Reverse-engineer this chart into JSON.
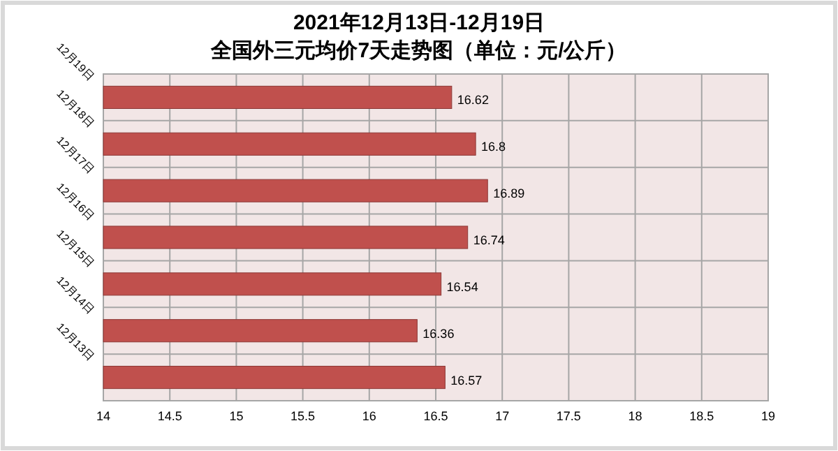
{
  "chart_data": {
    "type": "bar",
    "orientation": "horizontal",
    "title": "2021年12月13日-12月19日",
    "subtitle": "全国外三元均价7天走势图（单位：元/公斤）",
    "categories": [
      "12月19日",
      "12月18日",
      "12月17日",
      "12月16日",
      "12月15日",
      "12月14日",
      "12月13日"
    ],
    "values": [
      16.62,
      16.8,
      16.89,
      16.74,
      16.54,
      16.36,
      16.57
    ],
    "color": "#c0504d",
    "data_labels": true,
    "grid": true,
    "xlim": [
      14,
      19
    ],
    "xticks": [
      14,
      14.5,
      15,
      15.5,
      16,
      16.5,
      17,
      17.5,
      18,
      18.5,
      19
    ]
  }
}
